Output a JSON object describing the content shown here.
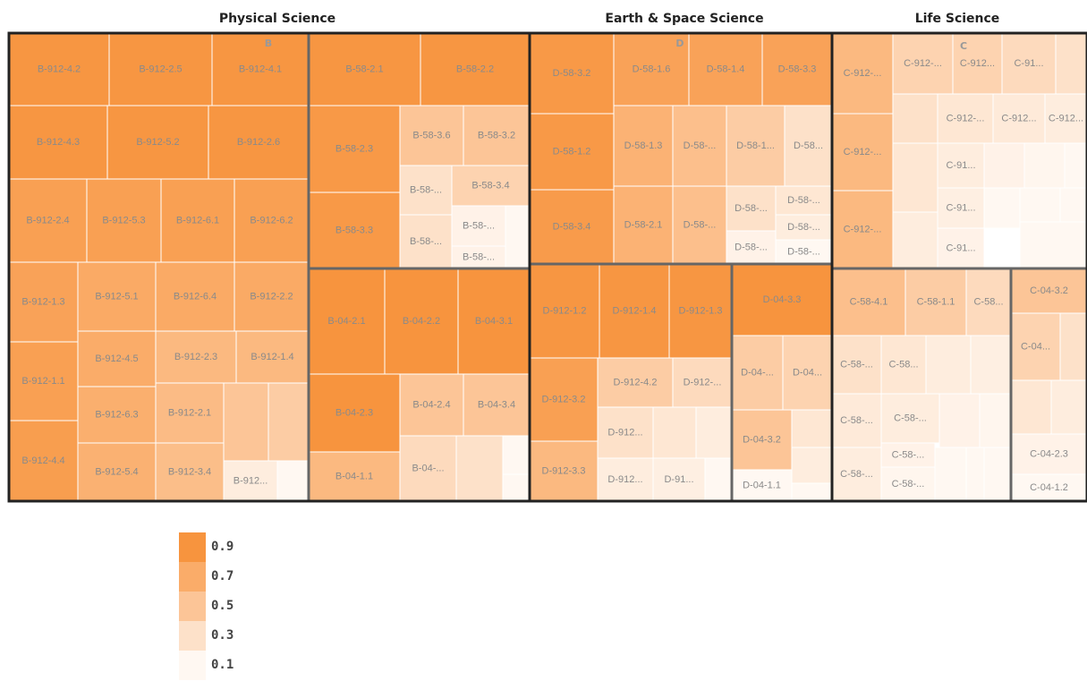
{
  "chart_data": {
    "type": "treemap",
    "sections": [
      {
        "title": "Physical Science",
        "blocks": [
          {
            "label": "B",
            "tiles": [
              [
                "B-912-4.2",
                0.88
              ],
              [
                "B-912-2.5",
                0.88
              ],
              [
                "B-912-4.1",
                0.88
              ],
              [
                "B-912-4.3",
                0.88
              ],
              [
                "B-912-5.2",
                0.88
              ],
              [
                "B-912-2.6",
                0.88
              ],
              [
                "B-912-2.4",
                0.8
              ],
              [
                "B-912-5.3",
                0.8
              ],
              [
                "B-912-6.1",
                0.8
              ],
              [
                "B-912-6.2",
                0.8
              ],
              [
                "B-912-1.3",
                0.78
              ],
              [
                "B-912-1.1",
                0.8
              ],
              [
                "B-912-4.4",
                0.82
              ],
              [
                "B-912-5.1",
                0.72
              ],
              [
                "B-912-4.5",
                0.7
              ],
              [
                "B-912-6.3",
                0.68
              ],
              [
                "B-912-5.4",
                0.66
              ],
              [
                "B-912-6.4",
                0.72
              ],
              [
                "B-912-2.2",
                0.72
              ],
              [
                "B-912-2.3",
                0.6
              ],
              [
                "B-912-1.4",
                0.6
              ],
              [
                "B-912-2.1",
                0.58
              ],
              [
                "B-912-3.4",
                0.56
              ],
              [
                null,
                0.5
              ],
              [
                null,
                0.45
              ],
              [
                "B-912...",
                0.2
              ],
              [
                null,
                0.05
              ]
            ]
          },
          {
            "tiles": [
              [
                "B-58-2.1",
                0.88
              ],
              [
                "B-58-2.2",
                0.88
              ],
              [
                "B-58-2.3",
                0.86
              ],
              [
                "B-58-3.3",
                0.86
              ],
              [
                "B-58-3.6",
                0.5
              ],
              [
                "B-58-3.2",
                0.5
              ],
              [
                "B-58-...",
                0.3
              ],
              [
                "B-58-3.4",
                0.4
              ],
              [
                "B-58-...",
                0.3
              ],
              [
                "B-58-...",
                0.15
              ],
              [
                "B-58-...",
                0.15
              ],
              [
                null,
                0.05
              ]
            ]
          },
          {
            "tiles": [
              [
                "B-04-2.1",
                0.92
              ],
              [
                "B-04-2.2",
                0.92
              ],
              [
                "B-04-3.1",
                0.92
              ],
              [
                "B-04-2.3",
                0.9
              ],
              [
                "B-04-1.1",
                0.6
              ],
              [
                "B-04-2.4",
                0.5
              ],
              [
                "B-04-3.4",
                0.5
              ],
              [
                "B-04-...",
                0.35
              ],
              [
                null,
                0.3
              ],
              [
                null,
                0.08
              ],
              [
                null,
                0.05
              ]
            ]
          }
        ]
      },
      {
        "title": "Earth & Space Science",
        "blocks": [
          {
            "label": "D",
            "tiles": [
              [
                "D-58-3.2",
                0.86
              ],
              [
                "D-58-1.2",
                0.86
              ],
              [
                "D-58-3.4",
                0.84
              ],
              [
                "D-58-1.6",
                0.78
              ],
              [
                "D-58-1.4",
                0.78
              ],
              [
                "D-58-3.3",
                0.78
              ],
              [
                "D-58-1.3",
                0.65
              ],
              [
                "D-58-...",
                0.55
              ],
              [
                "D-58-1...",
                0.45
              ],
              [
                "D-58...",
                0.3
              ],
              [
                "D-58-2.1",
                0.65
              ],
              [
                "D-58-...",
                0.55
              ],
              [
                "D-58-...",
                0.3
              ],
              [
                "D-58-...",
                0.25
              ],
              [
                "D-58-...",
                0.2
              ],
              [
                "D-58-...",
                0.15
              ],
              [
                "D-58-...",
                0.1
              ]
            ]
          },
          {
            "tiles": [
              [
                "D-912-1.2",
                0.88
              ],
              [
                "D-912-1.4",
                0.88
              ],
              [
                "D-912-1.3",
                0.88
              ],
              [
                "D-912-3.2",
                0.8
              ],
              [
                "D-912-3.3",
                0.6
              ],
              [
                "D-912-4.2",
                0.45
              ],
              [
                "D-912-...",
                0.35
              ],
              [
                "D-912...",
                0.3
              ],
              [
                null,
                0.25
              ],
              [
                null,
                0.2
              ],
              [
                "D-912...",
                0.2
              ],
              [
                "D-91...",
                0.18
              ],
              [
                null,
                0.1
              ]
            ]
          },
          {
            "tiles": [
              [
                "D-04-3.3",
                0.92
              ],
              [
                "D-04-...",
                0.45
              ],
              [
                "D-04...",
                0.4
              ],
              [
                "D-04-3.2",
                0.5
              ],
              [
                "D-04-1.1",
                0.1
              ],
              [
                null,
                0.25
              ],
              [
                null,
                0.2
              ],
              [
                null,
                0.05
              ]
            ]
          }
        ]
      },
      {
        "title": "Life Science",
        "blocks": [
          {
            "label": "C",
            "tiles": [
              [
                "C-912-...",
                0.6
              ],
              [
                "C-912-...",
                0.6
              ],
              [
                "C-912-...",
                0.6
              ],
              [
                "C-912-...",
                0.4
              ],
              [
                "C-912...",
                0.4
              ],
              [
                "C-91...",
                0.35
              ],
              [
                null,
                0.3
              ],
              [
                null,
                0.3
              ],
              [
                "C-912-...",
                0.25
              ],
              [
                "C-912...",
                0.22
              ],
              [
                "C-912...",
                0.2
              ],
              [
                null,
                0.25
              ],
              [
                null,
                0.2
              ],
              [
                "C-91...",
                0.2
              ],
              [
                "C-91...",
                0.18
              ],
              [
                "C-91...",
                0.15
              ],
              [
                null,
                0.15
              ],
              [
                null,
                0.12
              ],
              [
                null,
                0.1
              ],
              [
                null,
                0.1
              ],
              [
                null,
                0.08
              ],
              [
                null,
                0.06
              ],
              [
                null,
                0.05
              ]
            ]
          },
          {
            "tiles": [
              [
                "C-58-4.1",
                0.55
              ],
              [
                "C-58-1.1",
                0.45
              ],
              [
                "C-58...",
                0.35
              ],
              [
                "C-58-...",
                0.3
              ],
              [
                "C-58...",
                0.25
              ],
              [
                null,
                0.2
              ],
              [
                null,
                0.18
              ],
              [
                "C-58-...",
                0.22
              ],
              [
                "C-58-...",
                0.2
              ],
              [
                null,
                0.15
              ],
              [
                null,
                0.12
              ],
              [
                "C-58-...",
                0.2
              ],
              [
                "C-58-...",
                0.15
              ],
              [
                "C-58-...",
                0.12
              ],
              [
                null,
                0.08
              ],
              [
                null,
                0.05
              ],
              [
                null,
                0.03
              ]
            ]
          },
          {
            "tiles": [
              [
                "C-04-3.2",
                0.5
              ],
              [
                "C-04...",
                0.4
              ],
              [
                null,
                0.3
              ],
              [
                null,
                0.25
              ],
              [
                null,
                0.2
              ],
              [
                "C-04-2.3",
                0.15
              ],
              [
                "C-04-1.2",
                0.1
              ]
            ]
          }
        ]
      }
    ],
    "legend": {
      "values": [
        0.9,
        0.7,
        0.5,
        0.3,
        0.1
      ],
      "colors": [
        "#f7943e",
        "#faac69",
        "#fcc597",
        "#fde1c9",
        "#fff8f2"
      ]
    }
  }
}
